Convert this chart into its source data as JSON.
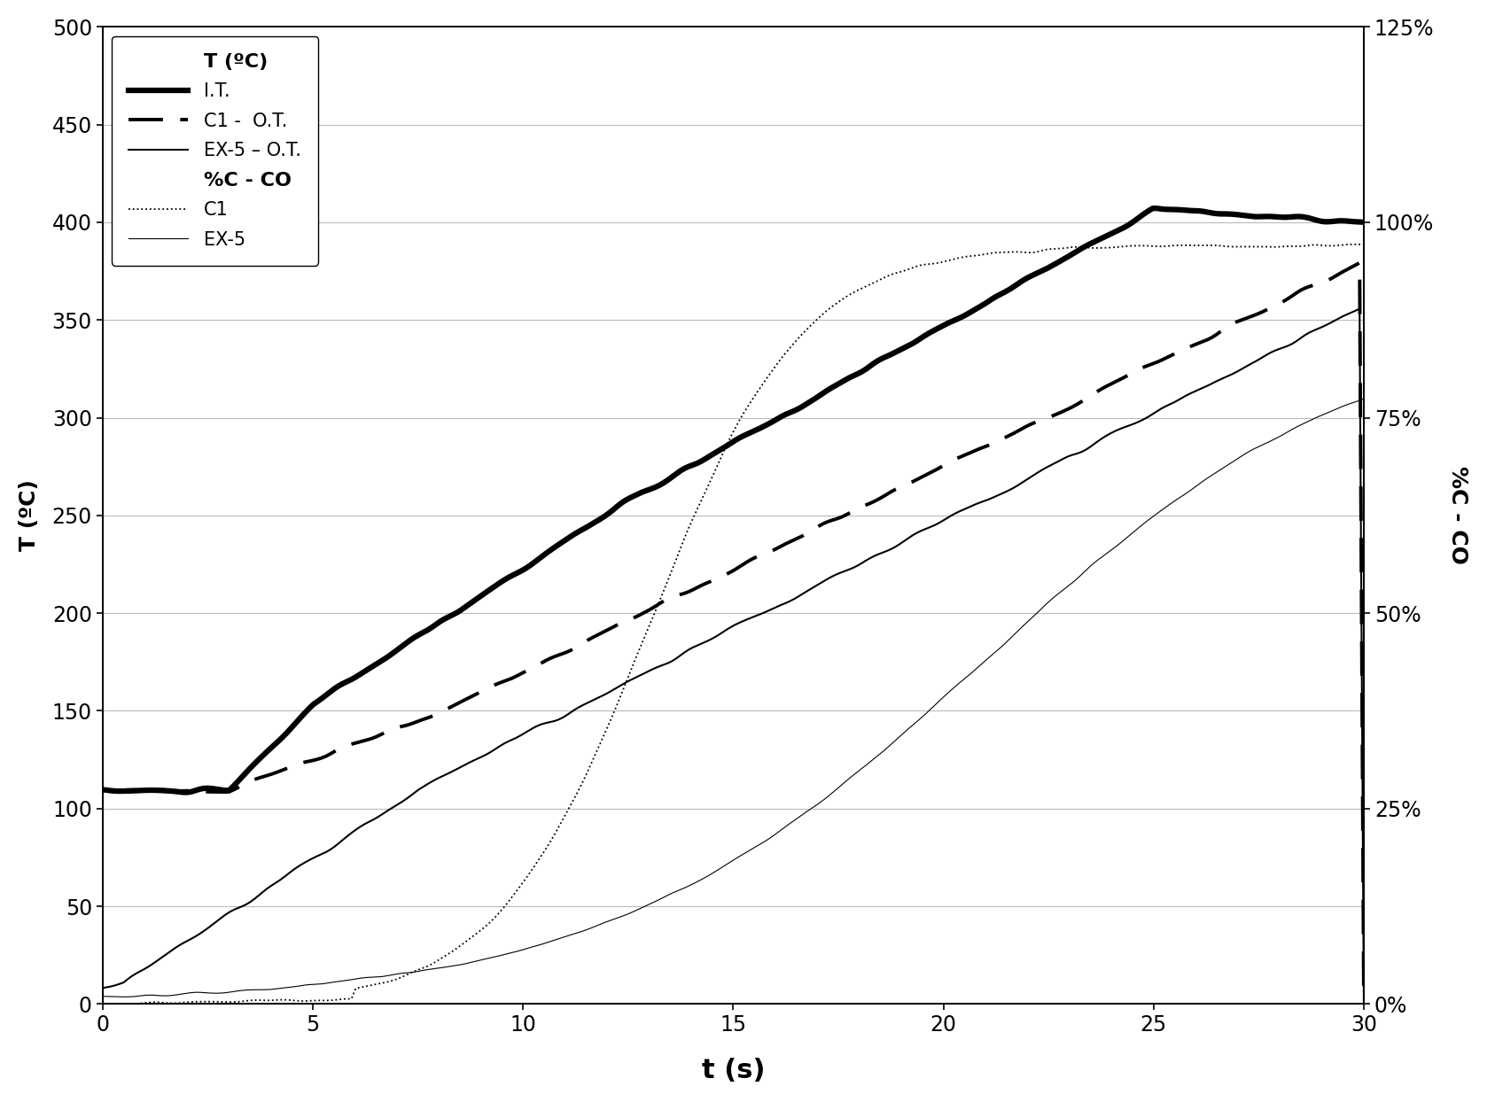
{
  "title": "",
  "xlabel": "t (s)",
  "ylabel_left": "T (ºC)",
  "ylabel_right": "%C - CO",
  "xlim": [
    0,
    30
  ],
  "ylim_left": [
    0,
    500
  ],
  "ylim_right": [
    0,
    1.25
  ],
  "xticks": [
    0,
    5,
    10,
    15,
    20,
    25,
    30
  ],
  "yticks_left": [
    0,
    50,
    100,
    150,
    200,
    250,
    300,
    350,
    400,
    450,
    500
  ],
  "yticks_right": [
    0.0,
    0.25,
    0.5,
    0.75,
    1.0,
    1.25
  ],
  "ytick_labels_right": [
    "0%",
    "25%",
    "50%",
    "75%",
    "100%",
    "125%"
  ],
  "background_color": "#ffffff",
  "line_color": "#000000",
  "legend_T_label": "T (ºC)",
  "legend_IT_label": "I.T.",
  "legend_C1OT_label": "C1 -  O.T.",
  "legend_EX5OT_label": "EX-5 – O.T.",
  "legend_pct_label": "%C - CO",
  "legend_C1pct_label": "C1",
  "legend_EX5pct_label": "EX-5"
}
